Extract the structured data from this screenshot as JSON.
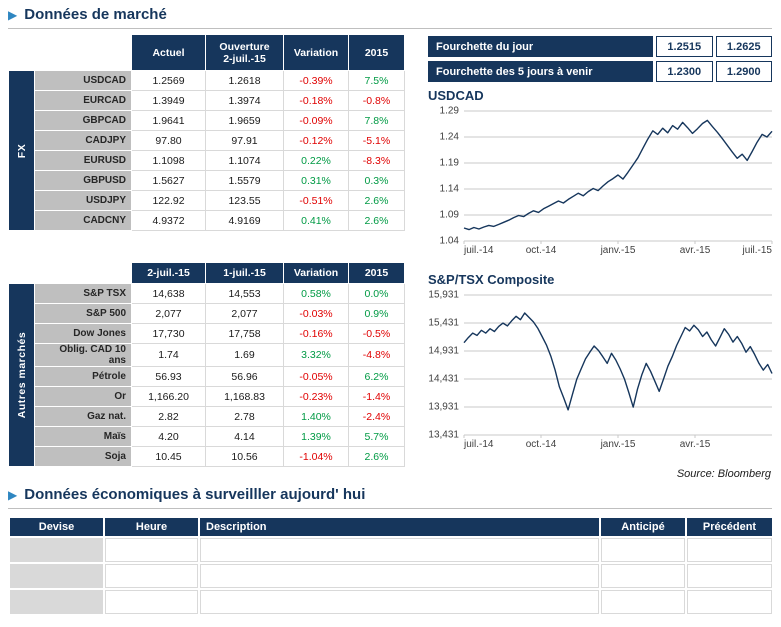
{
  "page": {
    "section1_title": "Données de marché",
    "section2_title": "Données économiques à surveilller aujourd' hui",
    "source_note": "Source: Bloomberg"
  },
  "icons": {
    "section_chevron": "▶"
  },
  "colors": {
    "navy": "#16365C",
    "negative_red": "#E00000",
    "positive_green": "#009A44",
    "accent_blue": "#2E86C1",
    "row_label_gray": "#BFBFBF",
    "empty_cell_gray": "#D9D9D9"
  },
  "fx_table": {
    "band_label": "FX",
    "headers": {
      "actuel": "Actuel",
      "ouverture_line1": "Ouverture",
      "ouverture_line2": "2-juil.-15",
      "variation": "Variation",
      "ytd": "2015"
    },
    "rows": [
      {
        "label": "USDCAD",
        "actuel": "1.2569",
        "ouverture": "1.2618",
        "variation": "-0.39%",
        "ytd": "7.5%"
      },
      {
        "label": "EURCAD",
        "actuel": "1.3949",
        "ouverture": "1.3974",
        "variation": "-0.18%",
        "ytd": "-0.8%"
      },
      {
        "label": "GBPCAD",
        "actuel": "1.9641",
        "ouverture": "1.9659",
        "variation": "-0.09%",
        "ytd": "7.8%"
      },
      {
        "label": "CADJPY",
        "actuel": "97.80",
        "ouverture": "97.91",
        "variation": "-0.12%",
        "ytd": "-5.1%"
      },
      {
        "label": "EURUSD",
        "actuel": "1.1098",
        "ouverture": "1.1074",
        "variation": "0.22%",
        "ytd": "-8.3%"
      },
      {
        "label": "GBPUSD",
        "actuel": "1.5627",
        "ouverture": "1.5579",
        "variation": "0.31%",
        "ytd": "0.3%"
      },
      {
        "label": "USDJPY",
        "actuel": "122.92",
        "ouverture": "123.55",
        "variation": "-0.51%",
        "ytd": "2.6%"
      },
      {
        "label": "CADCNY",
        "actuel": "4.9372",
        "ouverture": "4.9169",
        "variation": "0.41%",
        "ytd": "2.6%"
      }
    ]
  },
  "markets_table": {
    "band_label": "Autres marchés",
    "headers": {
      "date1": "2-juil.-15",
      "date2": "1-juil.-15",
      "variation": "Variation",
      "ytd": "2015"
    },
    "rows": [
      {
        "label": "S&P TSX",
        "v1": "14,638",
        "v2": "14,553",
        "variation": "0.58%",
        "ytd": "0.0%"
      },
      {
        "label": "S&P 500",
        "v1": "2,077",
        "v2": "2,077",
        "variation": "-0.03%",
        "ytd": "0.9%"
      },
      {
        "label": "Dow Jones",
        "v1": "17,730",
        "v2": "17,758",
        "variation": "-0.16%",
        "ytd": "-0.5%"
      },
      {
        "label": "Oblig. CAD 10 ans",
        "v1": "1.74",
        "v2": "1.69",
        "variation": "3.32%",
        "ytd": "-4.8%"
      },
      {
        "label": "Pétrole",
        "v1": "56.93",
        "v2": "56.96",
        "variation": "-0.05%",
        "ytd": "6.2%"
      },
      {
        "label": "Or",
        "v1": "1,166.20",
        "v2": "1,168.83",
        "variation": "-0.23%",
        "ytd": "-1.4%"
      },
      {
        "label": "Gaz nat.",
        "v1": "2.82",
        "v2": "2.78",
        "variation": "1.40%",
        "ytd": "-2.4%"
      },
      {
        "label": "Maïs",
        "v1": "4.20",
        "v2": "4.14",
        "variation": "1.39%",
        "ytd": "5.7%"
      },
      {
        "label": "Soja",
        "v1": "10.45",
        "v2": "10.56",
        "variation": "-1.04%",
        "ytd": "2.6%"
      }
    ]
  },
  "ranges": {
    "rows": [
      {
        "label": "Fourchette du jour",
        "low": "1.2515",
        "high": "1.2625"
      },
      {
        "label": "Fourchette des 5 jours à venir",
        "low": "1.2300",
        "high": "1.2900"
      }
    ]
  },
  "chart_data": [
    {
      "type": "line",
      "title": "USDCAD",
      "ylim": [
        1.04,
        1.29
      ],
      "y_ticks": [
        "1.29",
        "1.24",
        "1.19",
        "1.14",
        "1.09",
        "1.04"
      ],
      "x_ticks": [
        {
          "label": "juil.-14",
          "pos": 0
        },
        {
          "label": "oct.-14",
          "pos": 0.25
        },
        {
          "label": "janv.-15",
          "pos": 0.5
        },
        {
          "label": "avr.-15",
          "pos": 0.75
        },
        {
          "label": "juil.-15",
          "pos": 1
        }
      ],
      "grid": true,
      "values": [
        1.065,
        1.062,
        1.066,
        1.063,
        1.067,
        1.07,
        1.068,
        1.072,
        1.076,
        1.08,
        1.085,
        1.089,
        1.087,
        1.093,
        1.098,
        1.095,
        1.102,
        1.107,
        1.112,
        1.117,
        1.113,
        1.12,
        1.126,
        1.132,
        1.127,
        1.135,
        1.141,
        1.137,
        1.146,
        1.154,
        1.16,
        1.167,
        1.159,
        1.172,
        1.186,
        1.2,
        1.218,
        1.236,
        1.252,
        1.245,
        1.257,
        1.248,
        1.262,
        1.255,
        1.268,
        1.258,
        1.247,
        1.256,
        1.266,
        1.272,
        1.26,
        1.249,
        1.237,
        1.224,
        1.211,
        1.199,
        1.207,
        1.195,
        1.212,
        1.23,
        1.245,
        1.24,
        1.251
      ]
    },
    {
      "type": "line",
      "title": "S&P/TSX Composite",
      "ylim": [
        13431,
        15931
      ],
      "y_ticks": [
        "15,931",
        "15,431",
        "14,931",
        "14,431",
        "13,931",
        "13,431"
      ],
      "x_ticks": [
        {
          "label": "juil.-14",
          "pos": 0
        },
        {
          "label": "oct.-14",
          "pos": 0.25
        },
        {
          "label": "janv.-15",
          "pos": 0.5
        },
        {
          "label": "avr.-15",
          "pos": 0.75
        }
      ],
      "grid": true,
      "values": [
        15080,
        15170,
        15250,
        15210,
        15300,
        15250,
        15330,
        15280,
        15370,
        15430,
        15380,
        15470,
        15550,
        15490,
        15610,
        15530,
        15450,
        15340,
        15190,
        15040,
        14840,
        14590,
        14290,
        14090,
        13880,
        14160,
        14430,
        14610,
        14790,
        14910,
        15020,
        14940,
        14830,
        14710,
        14890,
        14770,
        14610,
        14430,
        14190,
        13930,
        14250,
        14510,
        14710,
        14570,
        14390,
        14210,
        14430,
        14660,
        14830,
        15030,
        15190,
        15350,
        15290,
        15390,
        15310,
        15190,
        15270,
        15130,
        15020,
        15170,
        15330,
        15230,
        15090,
        15190,
        15070,
        14910,
        15010,
        14870,
        14710,
        14590,
        14690,
        14530
      ]
    }
  ],
  "econ_table": {
    "headers": [
      "Devise",
      "Heure",
      "Description",
      "Anticipé",
      "Précédent"
    ],
    "rows": [
      [
        "",
        "",
        "",
        "",
        ""
      ],
      [
        "",
        "",
        "",
        "",
        ""
      ],
      [
        "",
        "",
        "",
        "",
        ""
      ]
    ]
  }
}
